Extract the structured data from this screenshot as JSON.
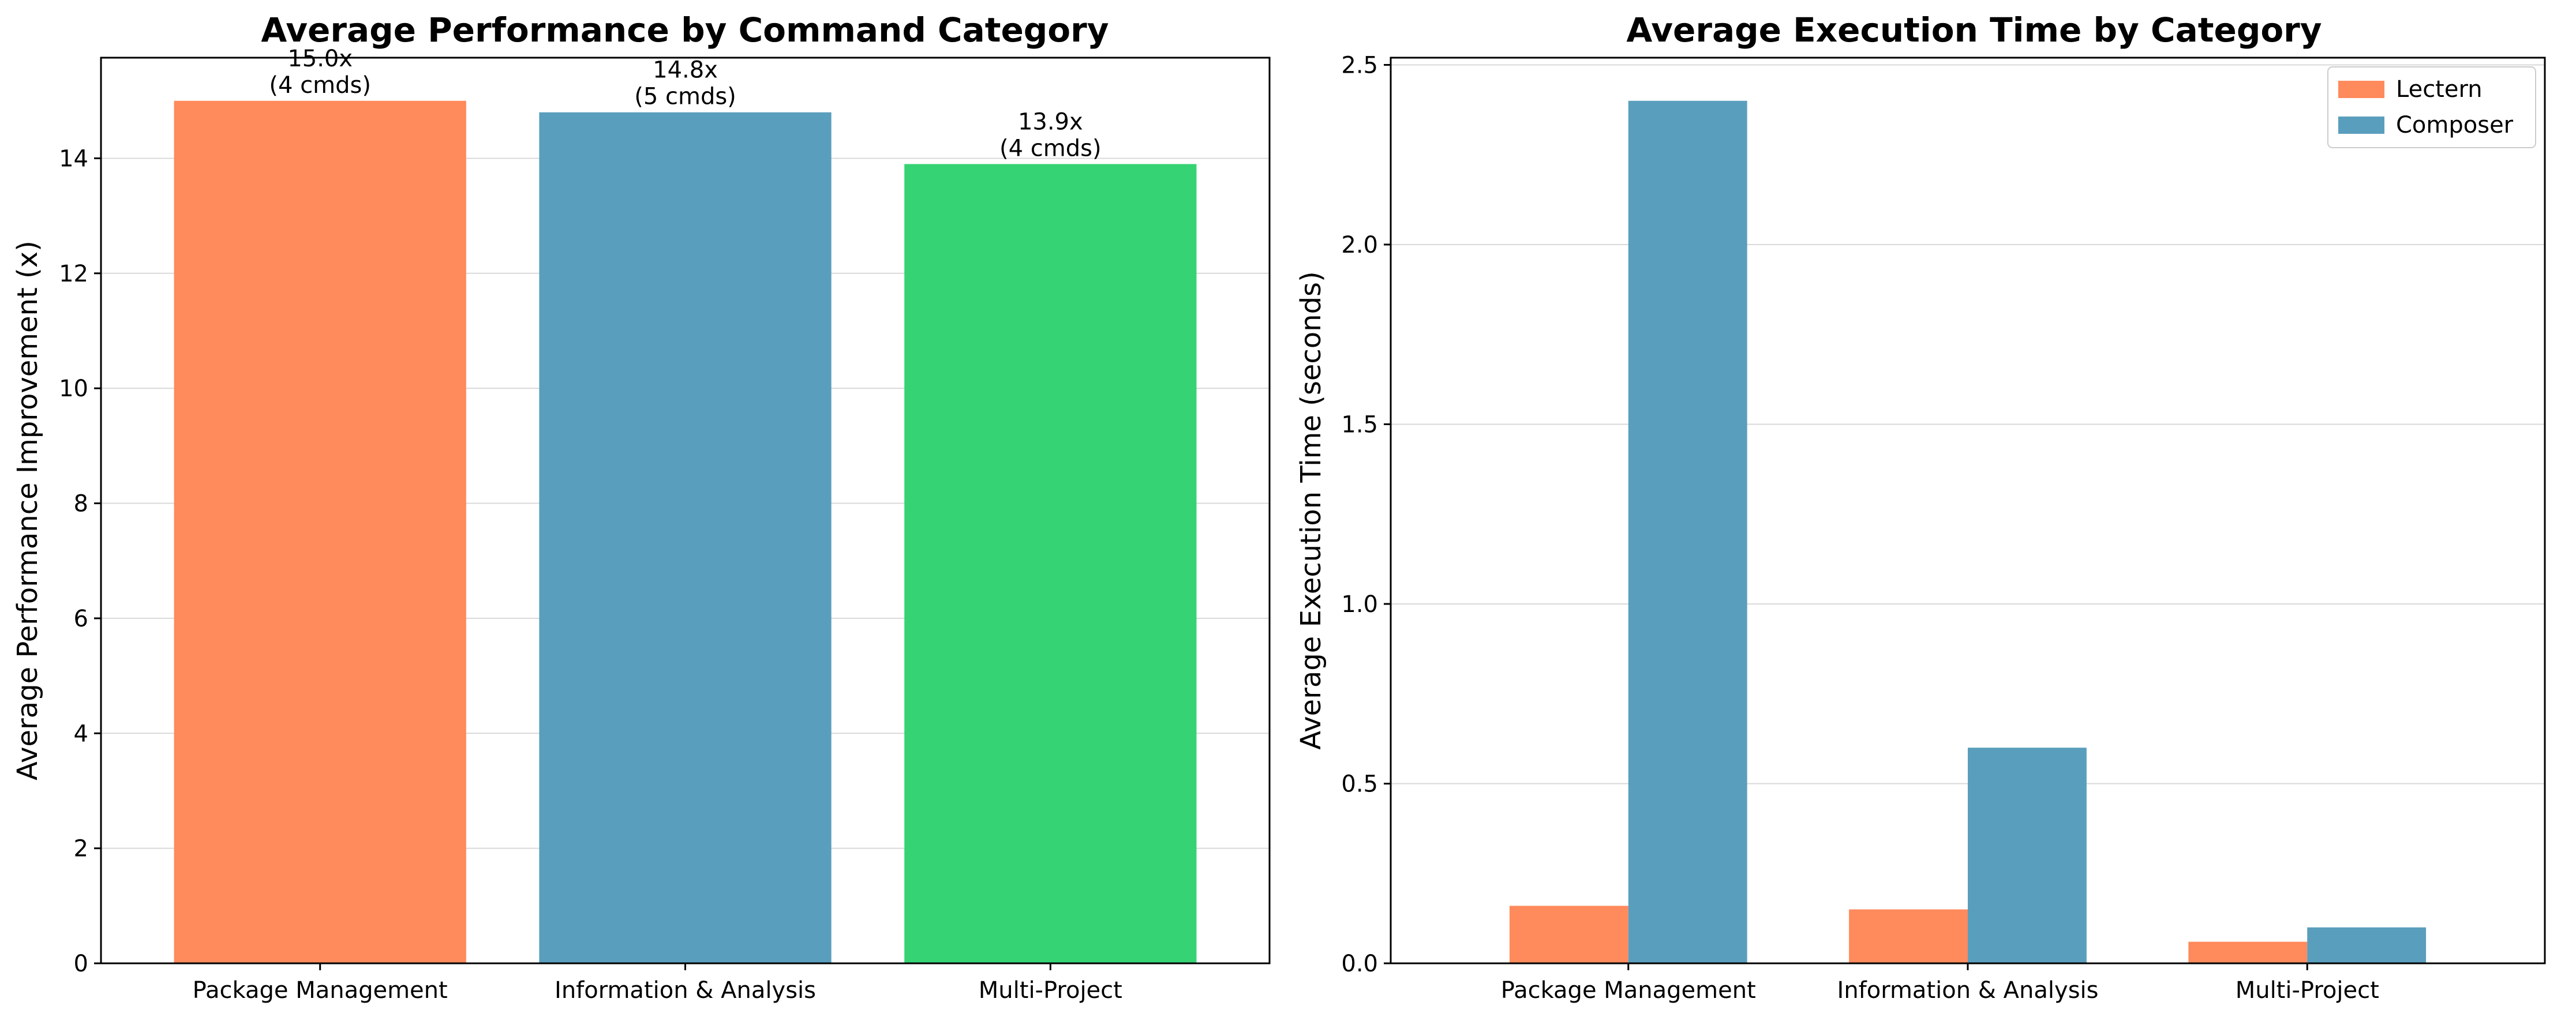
{
  "chart_data": [
    {
      "type": "bar",
      "title": "Average Performance by Command Category",
      "xlabel": "",
      "ylabel": "Average Performance Improvement (x)",
      "categories": [
        "Package Management",
        "Information & Analysis",
        "Multi-Project"
      ],
      "values": [
        15.0,
        14.8,
        13.9
      ],
      "bar_colors": [
        "#ff8a5c",
        "#5a9ebd",
        "#35d374"
      ],
      "data_labels": [
        [
          "15.0x",
          "(4 cmds)"
        ],
        [
          "14.8x",
          "(5 cmds)"
        ],
        [
          "13.9x",
          "(4 cmds)"
        ]
      ],
      "ylim": [
        0,
        15.75
      ],
      "yticks": [
        0,
        2,
        4,
        6,
        8,
        10,
        12,
        14
      ],
      "grid": true,
      "legend": null
    },
    {
      "type": "bar",
      "title": "Average Execution Time by Category",
      "xlabel": "",
      "ylabel": "Average Execution Time (seconds)",
      "categories": [
        "Package Management",
        "Information & Analysis",
        "Multi-Project"
      ],
      "series": [
        {
          "name": "Lectern",
          "color": "#ff8a5c",
          "values": [
            0.16,
            0.15,
            0.06
          ]
        },
        {
          "name": "Composer",
          "color": "#5a9ebd",
          "values": [
            2.4,
            0.6,
            0.1
          ]
        }
      ],
      "ylim": [
        0,
        2.52
      ],
      "yticks": [
        0.0,
        0.5,
        1.0,
        1.5,
        2.0,
        2.5
      ],
      "ytick_labels": [
        "0.0",
        "0.5",
        "1.0",
        "1.5",
        "2.0",
        "2.5"
      ],
      "grid": true,
      "legend": "top-right"
    }
  ]
}
